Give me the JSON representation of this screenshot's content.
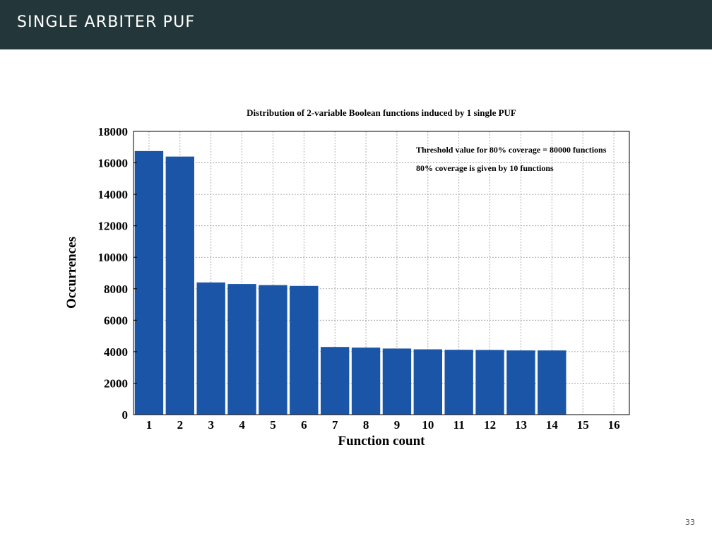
{
  "slide": {
    "title": "SINGLE ARBITER PUF",
    "page_number": "33"
  },
  "colors": {
    "header_bg": "#23373b",
    "bar": "#1a55a8"
  },
  "chart_data": {
    "type": "bar",
    "title": "Distribution of 2-variable Boolean functions induced by 1 single PUF",
    "xlabel": "Function count",
    "ylabel": "Occurrences",
    "categories": [
      "1",
      "2",
      "3",
      "4",
      "5",
      "6",
      "7",
      "8",
      "9",
      "10",
      "11",
      "12",
      "13",
      "14",
      "15",
      "16"
    ],
    "values": [
      16750,
      16400,
      8400,
      8300,
      8230,
      8180,
      4300,
      4260,
      4200,
      4150,
      4120,
      4110,
      4080,
      4080,
      0,
      0
    ],
    "ylim": [
      0,
      18000
    ],
    "yticks": [
      "0",
      "2000",
      "4000",
      "6000",
      "8000",
      "10000",
      "12000",
      "14000",
      "16000",
      "18000"
    ],
    "grid": true,
    "annotations": [
      "Threshold value for 80% coverage = 80000 functions",
      "80% coverage is given by 10 functions"
    ]
  }
}
